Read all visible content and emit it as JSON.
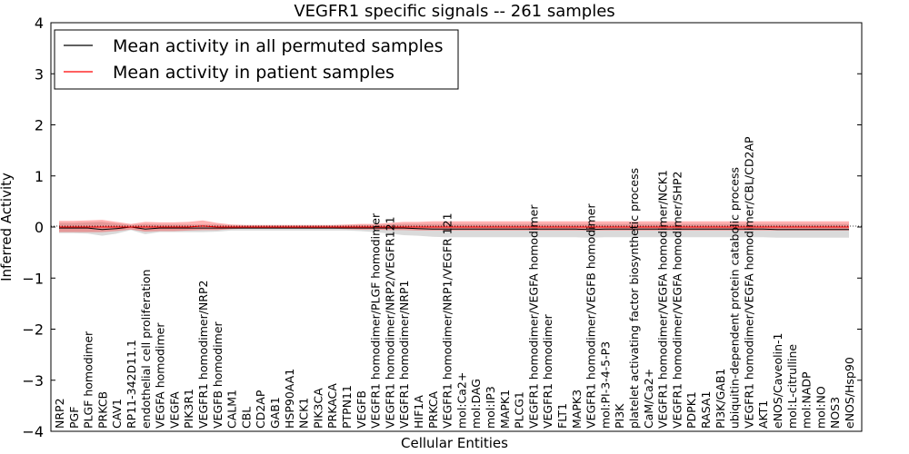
{
  "chart_data": {
    "type": "line",
    "title": "VEGFR1 specific signals -- 261 samples",
    "xlabel": "Cellular Entities",
    "ylabel": "Inferred Activity",
    "ylim": [
      -4,
      4
    ],
    "yticks": [
      4,
      3,
      2,
      1,
      0,
      -1,
      -2,
      -3,
      -4
    ],
    "grid": false,
    "legend_position": "top-left",
    "categories": [
      "NRP2",
      "PGF",
      "PLGF homodimer",
      "PRKCB",
      "CAV1",
      "RP11-342D11.1",
      "endothelial cell proliferation",
      "VEGFA homodimer",
      "VEGFA",
      "PIK3R1",
      "VEGFR1 homodimer/NRP2",
      "VEGFB homodimer",
      "CALM1",
      "CBL",
      "CD2AP",
      "GAB1",
      "HSP90AA1",
      "NCK1",
      "PIK3CA",
      "PRKACA",
      "PTPN11",
      "VEGFB",
      "VEGFR1 homodimer/PLGF homodimer",
      "VEGFR1 homodimer/NRP2/VEGFR121",
      "VEGFR1 homodimer/NRP1",
      "HIF1A",
      "PRKCA",
      "VEGFR1 homodimer/NRP1/VEGFR 121",
      "mol:Ca2+",
      "mol:DAG",
      "mol:IP3",
      "MAPK1",
      "PLCG1",
      "VEGFR1 homodimer/VEGFA homodimer",
      "VEGFR1 homodimer",
      "FLT1",
      "MAPK3",
      "VEGFR1 homodimer/VEGFB homodimer",
      "mol:PI-3-4-5-P3",
      "PI3K",
      "platelet activating factor biosynthetic process",
      "CaM/Ca2+",
      "VEGFR1 homodimer/VEGFA homodimer/NCK1",
      "VEGFR1 homodimer/VEGFA homodimer/SHP2",
      "PDPK1",
      "RASA1",
      "PI3K/GAB1",
      "ubiquitin-dependent protein catabolic process",
      "VEGFR1 homodimer/VEGFA homodimer/CBL/CD2AP",
      "AKT1",
      "eNOS/Caveolin-1",
      "mol:L-citrulline",
      "mol:NADP",
      "mol:NO",
      "NOS3",
      "eNOS/Hsp90"
    ],
    "series": [
      {
        "name": "Mean activity in all permuted samples",
        "color": "#000000",
        "values": [
          -0.02,
          -0.02,
          -0.02,
          -0.05,
          -0.03,
          0.0,
          -0.04,
          -0.02,
          -0.02,
          -0.02,
          -0.02,
          -0.02,
          -0.02,
          -0.02,
          -0.02,
          -0.02,
          -0.02,
          -0.02,
          -0.02,
          -0.02,
          -0.02,
          -0.02,
          -0.02,
          -0.02,
          -0.02,
          -0.03,
          -0.04,
          -0.04,
          -0.04,
          -0.04,
          -0.04,
          -0.04,
          -0.04,
          -0.04,
          -0.04,
          -0.04,
          -0.04,
          -0.05,
          -0.04,
          -0.04,
          -0.04,
          -0.04,
          -0.04,
          -0.04,
          -0.04,
          -0.04,
          -0.04,
          -0.04,
          -0.04,
          -0.04,
          -0.05,
          -0.05,
          -0.05,
          -0.05,
          -0.05,
          -0.05
        ],
        "band_upper": [
          0.08,
          0.08,
          0.09,
          0.1,
          0.07,
          0.04,
          0.06,
          0.05,
          0.05,
          0.05,
          0.05,
          0.05,
          0.03,
          0.03,
          0.03,
          0.03,
          0.03,
          0.03,
          0.03,
          0.03,
          0.03,
          0.04,
          0.04,
          0.05,
          0.06,
          0.06,
          0.06,
          0.06,
          0.06,
          0.06,
          0.06,
          0.06,
          0.06,
          0.06,
          0.06,
          0.06,
          0.06,
          0.06,
          0.06,
          0.06,
          0.06,
          0.06,
          0.06,
          0.06,
          0.06,
          0.06,
          0.06,
          0.06,
          0.06,
          0.06,
          0.06,
          0.06,
          0.06,
          0.06,
          0.06,
          0.06
        ],
        "band_lower": [
          -0.12,
          -0.12,
          -0.13,
          -0.17,
          -0.13,
          -0.06,
          -0.14,
          -0.1,
          -0.1,
          -0.1,
          -0.1,
          -0.09,
          -0.07,
          -0.07,
          -0.07,
          -0.07,
          -0.07,
          -0.07,
          -0.07,
          -0.07,
          -0.07,
          -0.08,
          -0.1,
          -0.13,
          -0.16,
          -0.17,
          -0.19,
          -0.2,
          -0.2,
          -0.2,
          -0.2,
          -0.2,
          -0.2,
          -0.2,
          -0.2,
          -0.2,
          -0.2,
          -0.21,
          -0.2,
          -0.2,
          -0.2,
          -0.2,
          -0.2,
          -0.2,
          -0.2,
          -0.2,
          -0.2,
          -0.2,
          -0.2,
          -0.2,
          -0.21,
          -0.21,
          -0.21,
          -0.21,
          -0.21,
          -0.21
        ]
      },
      {
        "name": "Mean activity in patient samples",
        "color": "#ff0000",
        "values": [
          0.0,
          0.0,
          0.0,
          0.0,
          0.0,
          0.0,
          0.0,
          0.0,
          0.0,
          0.0,
          0.02,
          0.0,
          0.0,
          0.0,
          0.0,
          0.0,
          0.0,
          0.0,
          0.0,
          0.0,
          0.0,
          0.0,
          0.0,
          0.0,
          0.0,
          0.0,
          0.0,
          0.0,
          0.0,
          0.0,
          0.0,
          0.0,
          0.0,
          0.0,
          0.0,
          0.0,
          0.0,
          0.0,
          0.0,
          0.0,
          0.0,
          0.0,
          0.0,
          0.0,
          0.0,
          0.0,
          0.0,
          0.0,
          0.0,
          0.0,
          0.0,
          0.0,
          0.0,
          0.0,
          0.0,
          0.0
        ],
        "band_upper": [
          0.12,
          0.12,
          0.13,
          0.14,
          0.1,
          0.06,
          0.1,
          0.09,
          0.09,
          0.1,
          0.13,
          0.08,
          0.05,
          0.04,
          0.04,
          0.04,
          0.04,
          0.04,
          0.04,
          0.04,
          0.05,
          0.06,
          0.06,
          0.08,
          0.1,
          0.1,
          0.11,
          0.11,
          0.11,
          0.11,
          0.11,
          0.11,
          0.11,
          0.11,
          0.11,
          0.11,
          0.11,
          0.11,
          0.11,
          0.11,
          0.11,
          0.11,
          0.11,
          0.11,
          0.11,
          0.11,
          0.11,
          0.11,
          0.11,
          0.11,
          0.11,
          0.11,
          0.11,
          0.11,
          0.11,
          0.11
        ],
        "band_lower": [
          -0.1,
          -0.1,
          -0.1,
          -0.1,
          -0.08,
          -0.05,
          -0.09,
          -0.08,
          -0.08,
          -0.07,
          -0.06,
          -0.06,
          -0.04,
          -0.03,
          -0.03,
          -0.03,
          -0.03,
          -0.03,
          -0.03,
          -0.03,
          -0.04,
          -0.05,
          -0.05,
          -0.06,
          -0.06,
          -0.07,
          -0.07,
          -0.07,
          -0.07,
          -0.07,
          -0.07,
          -0.07,
          -0.07,
          -0.07,
          -0.07,
          -0.07,
          -0.07,
          -0.07,
          -0.07,
          -0.07,
          -0.07,
          -0.07,
          -0.07,
          -0.07,
          -0.07,
          -0.07,
          -0.07,
          -0.07,
          -0.07,
          -0.07,
          -0.07,
          -0.07,
          -0.07,
          -0.07,
          -0.07,
          -0.07
        ]
      }
    ]
  }
}
